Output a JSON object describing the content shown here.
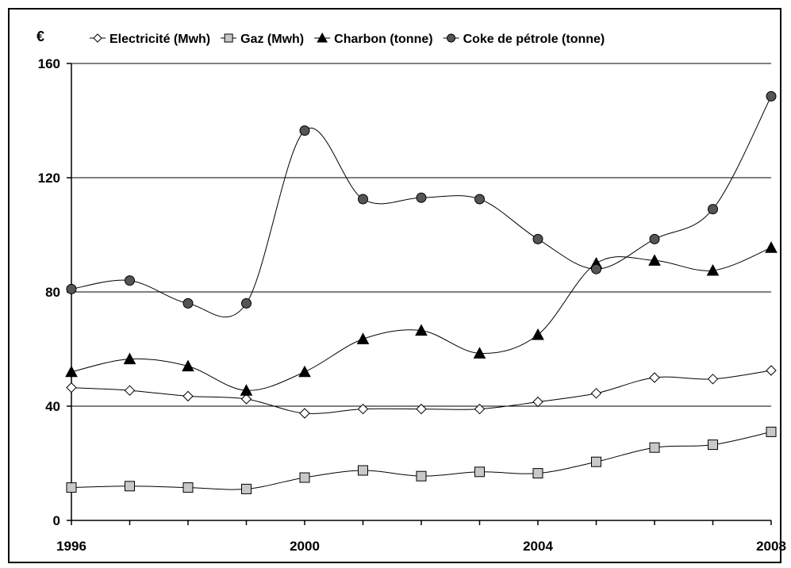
{
  "chart_data": {
    "type": "line",
    "title": "",
    "xlabel": "",
    "ylabel": "€",
    "ylim": [
      0,
      160
    ],
    "yticks": [
      "0",
      "40",
      "80",
      "120",
      "160"
    ],
    "xlim": [
      1996,
      2008
    ],
    "xticks": [
      "1996",
      "2000",
      "2004",
      "2008"
    ],
    "grid": true,
    "legend_position": "top",
    "x": [
      1996,
      1997,
      1998,
      1999,
      2000,
      2001,
      2002,
      2003,
      2004,
      2005,
      2006,
      2007,
      2008
    ],
    "series": [
      {
        "name": "Electricité (Mwh)",
        "marker": "diamond",
        "color": "#ffffff",
        "values": [
          46.5,
          45.5,
          43.5,
          42.5,
          37.5,
          39,
          39,
          39,
          41.5,
          44.5,
          50,
          49.5,
          52.5
        ]
      },
      {
        "name": "Gaz (Mwh)",
        "marker": "square",
        "color": "#c8c8c8",
        "values": [
          11.5,
          12,
          11.5,
          11,
          15,
          17.5,
          15.5,
          17,
          16.5,
          20.5,
          25.5,
          26.5,
          31
        ]
      },
      {
        "name": "Charbon (tonne)",
        "marker": "triangle",
        "color": "#000000",
        "values": [
          52,
          56.5,
          54,
          45.5,
          52,
          63.5,
          66.5,
          58.5,
          65,
          90,
          91,
          87.5,
          95.5
        ]
      },
      {
        "name": "Coke de pétrole (tonne)",
        "marker": "circle",
        "color": "#555555",
        "values": [
          81,
          84,
          76,
          76,
          136.5,
          112.5,
          113,
          112.5,
          98.5,
          88,
          98.5,
          109,
          148.5
        ]
      }
    ]
  }
}
